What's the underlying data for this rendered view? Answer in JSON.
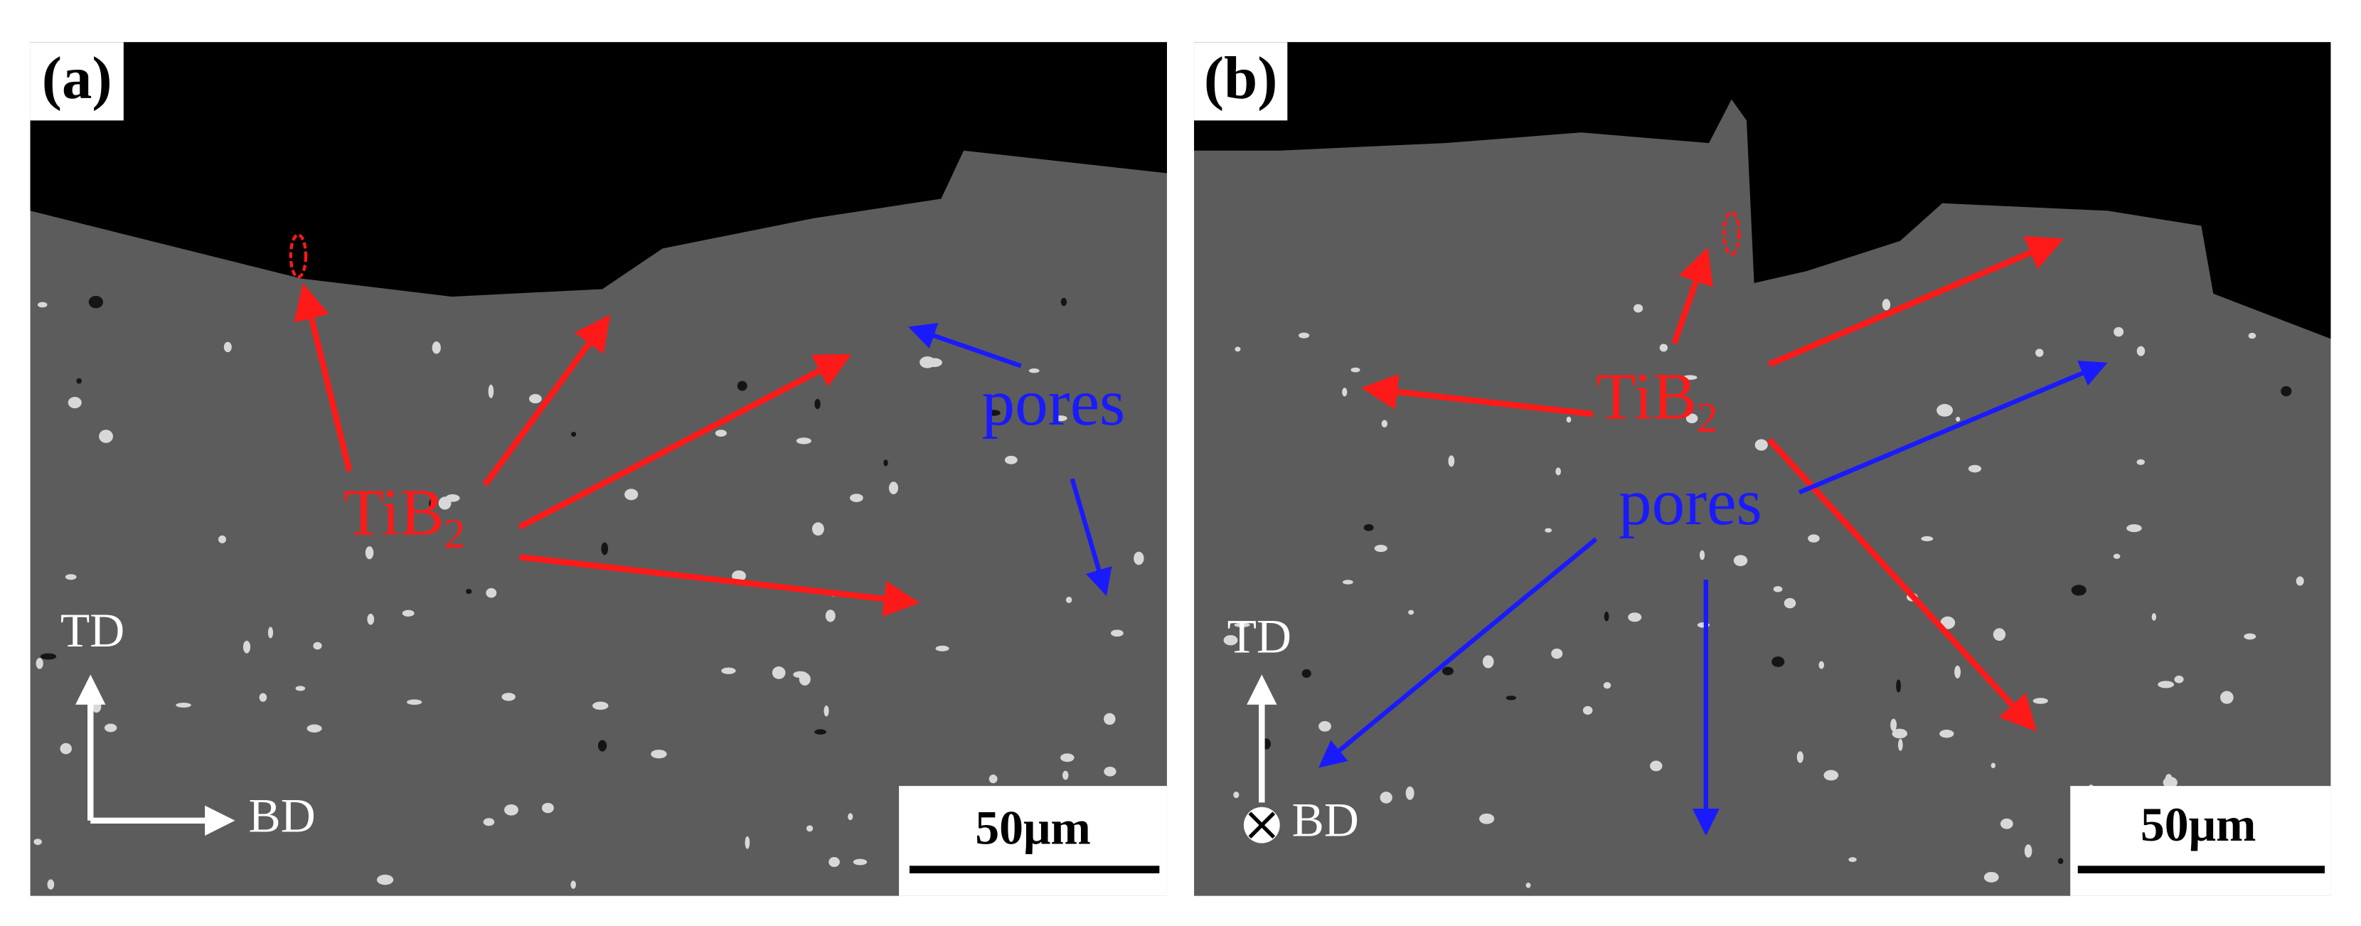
{
  "panels": [
    {
      "label": "(a)",
      "phase": {
        "main": "TiB",
        "sub": "2"
      },
      "pores": "pores",
      "td": "TD",
      "bd": "BD",
      "scale_bar": "50μm"
    },
    {
      "label": "(b)",
      "phase": {
        "main": "TiB",
        "sub": "2"
      },
      "pores": "pores",
      "td": "TD",
      "bd": "BD",
      "scale_bar": "50μm"
    }
  ]
}
